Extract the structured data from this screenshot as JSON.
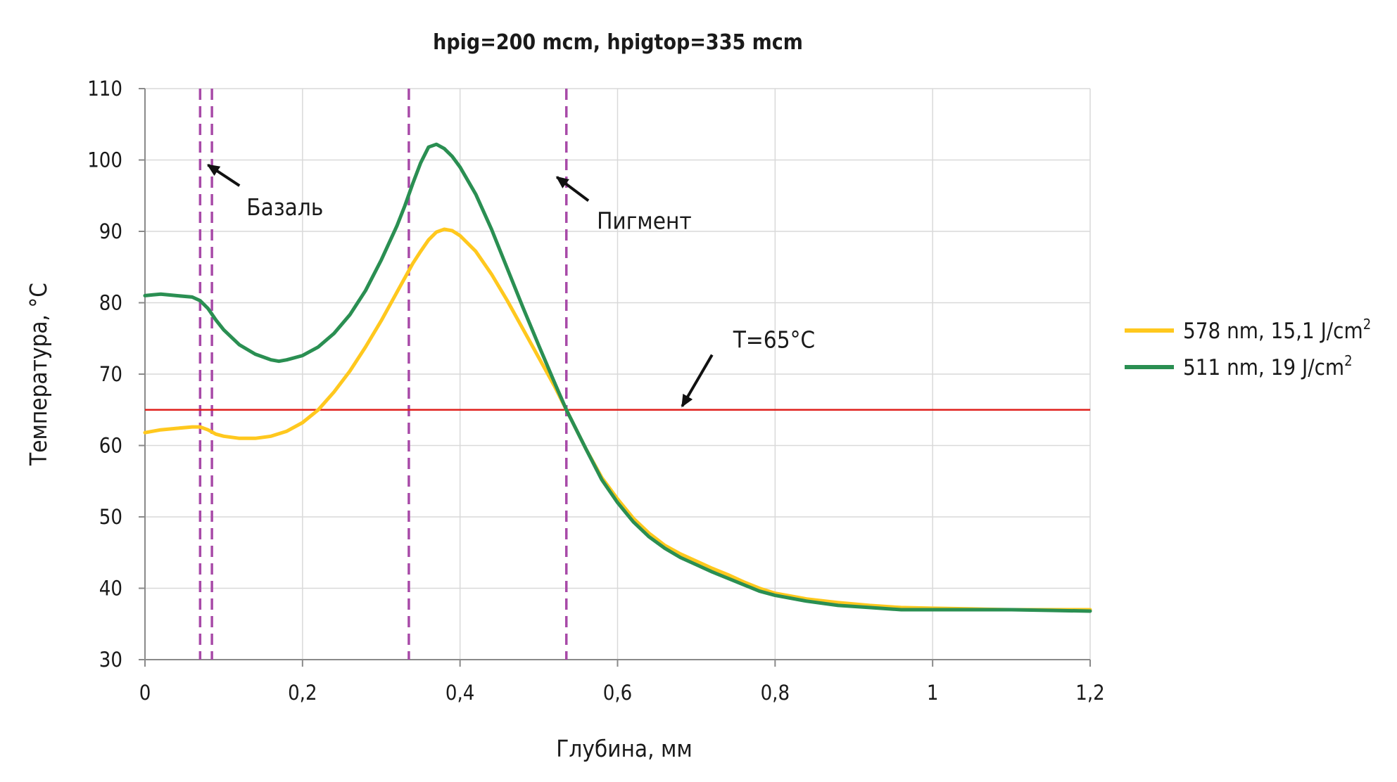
{
  "chart_data": {
    "type": "line",
    "title": "hpig=200 mcm, hpigtop=335 mcm",
    "xlabel": "Глубина, мм",
    "ylabel": "Температура, °С",
    "xlim": [
      0,
      1.2
    ],
    "ylim": [
      30,
      110
    ],
    "x_ticks": [
      0,
      0.2,
      0.4,
      0.6,
      0.8,
      1,
      1.2
    ],
    "x_tick_labels": [
      "0",
      "0,2",
      "0,4",
      "0,6",
      "0,8",
      "1",
      "1,2"
    ],
    "y_ticks": [
      30,
      40,
      50,
      60,
      70,
      80,
      90,
      100,
      110
    ],
    "y_tick_labels": [
      "30",
      "40",
      "50",
      "60",
      "70",
      "80",
      "90",
      "100",
      "110"
    ],
    "grid": true,
    "legend_position": "right",
    "series": [
      {
        "name": "578 nm, 15,1 J/cm²",
        "legend_main": "578 nm, 15,1 J/cm",
        "legend_sup": "2",
        "color": "#ffc81e",
        "points": [
          [
            0,
            61.8
          ],
          [
            0.02,
            62.2
          ],
          [
            0.04,
            62.4
          ],
          [
            0.06,
            62.6
          ],
          [
            0.07,
            62.6
          ],
          [
            0.08,
            62.2
          ],
          [
            0.09,
            61.6
          ],
          [
            0.1,
            61.3
          ],
          [
            0.12,
            61.0
          ],
          [
            0.14,
            61.0
          ],
          [
            0.16,
            61.3
          ],
          [
            0.18,
            62.0
          ],
          [
            0.2,
            63.2
          ],
          [
            0.22,
            65.0
          ],
          [
            0.24,
            67.5
          ],
          [
            0.26,
            70.4
          ],
          [
            0.28,
            73.8
          ],
          [
            0.3,
            77.5
          ],
          [
            0.32,
            81.5
          ],
          [
            0.34,
            85.5
          ],
          [
            0.35,
            87.2
          ],
          [
            0.36,
            88.8
          ],
          [
            0.37,
            89.9
          ],
          [
            0.38,
            90.3
          ],
          [
            0.39,
            90.1
          ],
          [
            0.4,
            89.4
          ],
          [
            0.42,
            87.2
          ],
          [
            0.44,
            84.0
          ],
          [
            0.46,
            80.3
          ],
          [
            0.48,
            76.3
          ],
          [
            0.5,
            72.3
          ],
          [
            0.52,
            68.3
          ],
          [
            0.535,
            65.0
          ],
          [
            0.56,
            59.5
          ],
          [
            0.58,
            55.5
          ],
          [
            0.6,
            52.5
          ],
          [
            0.62,
            49.8
          ],
          [
            0.64,
            47.7
          ],
          [
            0.66,
            46.0
          ],
          [
            0.68,
            44.8
          ],
          [
            0.7,
            43.8
          ],
          [
            0.72,
            42.8
          ],
          [
            0.74,
            41.9
          ],
          [
            0.76,
            40.9
          ],
          [
            0.78,
            40.0
          ],
          [
            0.8,
            39.3
          ],
          [
            0.84,
            38.5
          ],
          [
            0.88,
            38.0
          ],
          [
            0.92,
            37.6
          ],
          [
            0.96,
            37.3
          ],
          [
            1.0,
            37.2
          ],
          [
            1.05,
            37.1
          ],
          [
            1.1,
            37.0
          ],
          [
            1.15,
            37.0
          ],
          [
            1.2,
            37.0
          ]
        ]
      },
      {
        "name": "511 nm, 19 J/cm²",
        "legend_main": "511 nm, 19 J/cm",
        "legend_sup": "2",
        "color": "#2a8f52",
        "points": [
          [
            0,
            81.0
          ],
          [
            0.01,
            81.1
          ],
          [
            0.02,
            81.2
          ],
          [
            0.04,
            81.0
          ],
          [
            0.06,
            80.8
          ],
          [
            0.07,
            80.3
          ],
          [
            0.08,
            79.2
          ],
          [
            0.09,
            77.6
          ],
          [
            0.1,
            76.2
          ],
          [
            0.12,
            74.1
          ],
          [
            0.14,
            72.8
          ],
          [
            0.16,
            72.0
          ],
          [
            0.17,
            71.8
          ],
          [
            0.18,
            72.0
          ],
          [
            0.2,
            72.6
          ],
          [
            0.22,
            73.8
          ],
          [
            0.24,
            75.7
          ],
          [
            0.26,
            78.3
          ],
          [
            0.28,
            81.7
          ],
          [
            0.3,
            86.0
          ],
          [
            0.32,
            90.8
          ],
          [
            0.33,
            93.6
          ],
          [
            0.34,
            96.7
          ],
          [
            0.35,
            99.6
          ],
          [
            0.36,
            101.8
          ],
          [
            0.37,
            102.2
          ],
          [
            0.38,
            101.6
          ],
          [
            0.39,
            100.5
          ],
          [
            0.4,
            99.0
          ],
          [
            0.42,
            95.2
          ],
          [
            0.44,
            90.3
          ],
          [
            0.46,
            84.8
          ],
          [
            0.48,
            79.3
          ],
          [
            0.5,
            74.0
          ],
          [
            0.52,
            68.8
          ],
          [
            0.535,
            65.0
          ],
          [
            0.56,
            59.5
          ],
          [
            0.58,
            55.2
          ],
          [
            0.6,
            52.0
          ],
          [
            0.62,
            49.3
          ],
          [
            0.64,
            47.2
          ],
          [
            0.66,
            45.6
          ],
          [
            0.68,
            44.3
          ],
          [
            0.7,
            43.3
          ],
          [
            0.72,
            42.3
          ],
          [
            0.74,
            41.4
          ],
          [
            0.76,
            40.5
          ],
          [
            0.78,
            39.6
          ],
          [
            0.8,
            39.0
          ],
          [
            0.84,
            38.2
          ],
          [
            0.88,
            37.6
          ],
          [
            0.92,
            37.3
          ],
          [
            0.96,
            37.0
          ],
          [
            1.0,
            37.0
          ],
          [
            1.05,
            37.0
          ],
          [
            1.1,
            37.0
          ],
          [
            1.15,
            36.9
          ],
          [
            1.2,
            36.8
          ]
        ]
      }
    ],
    "reference_line": {
      "y": 65,
      "color": "#e0201c"
    },
    "vertical_markers": {
      "x": [
        0.07,
        0.085,
        0.335,
        0.535
      ],
      "color": "#a84aa8"
    },
    "annotations": [
      {
        "text": "Базаль",
        "arrow_from": [
          0.12,
          96.4
        ],
        "arrow_to": [
          0.08,
          99.3
        ]
      },
      {
        "text": "Пигмент",
        "arrow_from": [
          0.563,
          94.3
        ],
        "arrow_to": [
          0.523,
          97.6
        ]
      },
      {
        "text": "T=65°C",
        "arrow_from": [
          0.72,
          72.7
        ],
        "arrow_to": [
          0.682,
          65.5
        ]
      }
    ]
  }
}
